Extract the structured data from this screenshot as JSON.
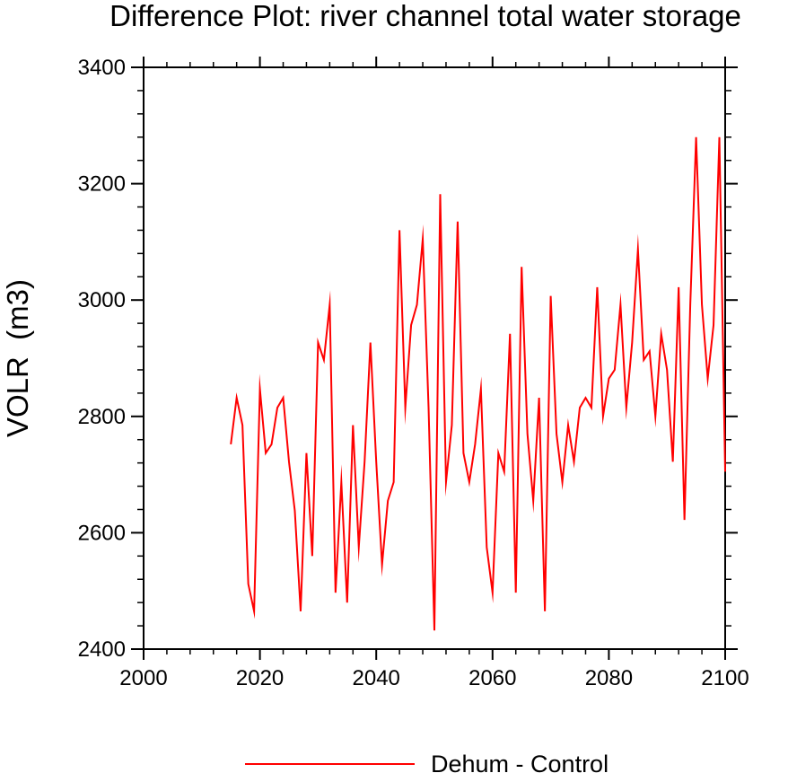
{
  "chart_data": {
    "type": "line",
    "title": "Difference Plot: river channel total water storage",
    "xlabel": "",
    "ylabel": "VOLR  (m3)",
    "xlim": [
      2000,
      2100
    ],
    "ylim": [
      2400,
      3400
    ],
    "x_ticks": [
      2000,
      2020,
      2040,
      2060,
      2080,
      2100
    ],
    "x_tick_labels": [
      "2000",
      "2020",
      "2040",
      "2060",
      "2080",
      "2100"
    ],
    "y_ticks": [
      2400,
      2600,
      2800,
      3000,
      3200,
      3400
    ],
    "y_tick_labels": [
      "2400",
      "2600",
      "2800",
      "3000",
      "3200",
      "3400"
    ],
    "grid": false,
    "legend_position": "bottom-center",
    "series": [
      {
        "name": "Dehum - Control",
        "color": "#ff0000",
        "x": [
          2015,
          2016,
          2017,
          2018,
          2019,
          2020,
          2021,
          2022,
          2023,
          2024,
          2025,
          2026,
          2027,
          2028,
          2029,
          2030,
          2031,
          2032,
          2033,
          2034,
          2035,
          2036,
          2037,
          2038,
          2039,
          2040,
          2041,
          2042,
          2043,
          2044,
          2045,
          2046,
          2047,
          2048,
          2049,
          2050,
          2051,
          2052,
          2053,
          2054,
          2055,
          2056,
          2057,
          2058,
          2059,
          2060,
          2061,
          2062,
          2063,
          2064,
          2065,
          2066,
          2067,
          2068,
          2069,
          2070,
          2071,
          2072,
          2073,
          2074,
          2075,
          2076,
          2077,
          2078,
          2079,
          2080,
          2081,
          2082,
          2083,
          2084,
          2085,
          2086,
          2087,
          2088,
          2089,
          2090,
          2091,
          2092,
          2093,
          2094,
          2095,
          2096,
          2097,
          2098,
          2099,
          2100
        ],
        "values": [
          2752,
          2832,
          2785,
          2512,
          2465,
          2847,
          2737,
          2752,
          2815,
          2832,
          2722,
          2638,
          2465,
          2737,
          2560,
          2927,
          2897,
          2992,
          2497,
          2687,
          2480,
          2785,
          2575,
          2722,
          2927,
          2722,
          2545,
          2655,
          2687,
          3120,
          2815,
          2957,
          2992,
          3105,
          2815,
          2432,
          3182,
          2687,
          2785,
          3135,
          2737,
          2687,
          2752,
          2847,
          2575,
          2497,
          2737,
          2705,
          2942,
          2497,
          3057,
          2770,
          2655,
          2832,
          2465,
          3007,
          2770,
          2687,
          2785,
          2722,
          2815,
          2832,
          2815,
          3022,
          2800,
          2865,
          2880,
          2992,
          2815,
          2927,
          3087,
          2897,
          2912,
          2800,
          2942,
          2880,
          2722,
          3022,
          2622,
          2992,
          3280,
          2992,
          2865,
          2957,
          3280,
          2705
        ]
      }
    ]
  }
}
